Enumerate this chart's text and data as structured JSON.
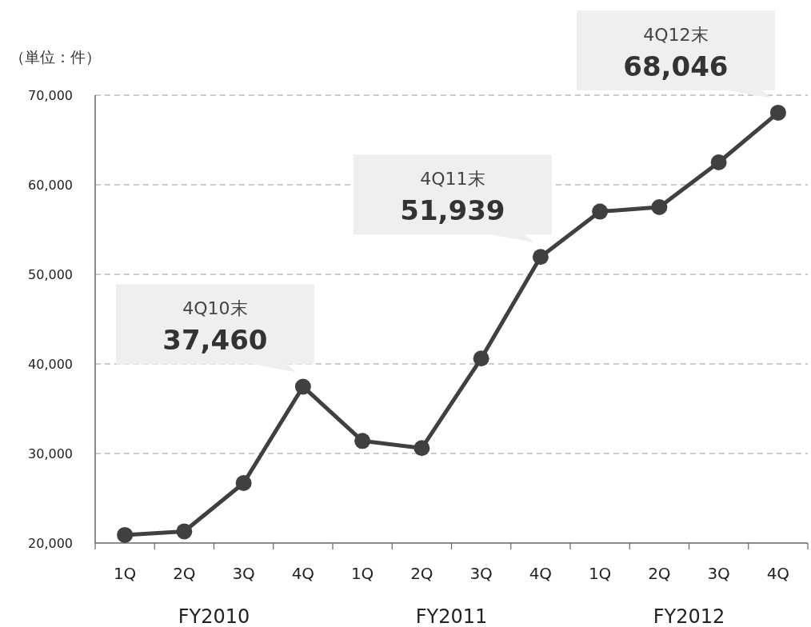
{
  "chart_data": {
    "type": "line",
    "ylabel": "（単位：件）",
    "categories": [
      "1Q",
      "2Q",
      "3Q",
      "4Q",
      "1Q",
      "2Q",
      "3Q",
      "4Q",
      "1Q",
      "2Q",
      "3Q",
      "4Q"
    ],
    "series": [
      {
        "color": "#404040",
        "values": [
          20900,
          21300,
          26700,
          37460,
          31400,
          30600,
          40600,
          51939,
          57000,
          57500,
          62500,
          68046
        ],
        "value_labels": [
          null,
          null,
          null,
          "37,460",
          null,
          null,
          null,
          "51,939",
          null,
          null,
          null,
          "68,046"
        ]
      }
    ],
    "ylim": [
      20000,
      70000
    ],
    "yticks": [
      {
        "value": 20000,
        "label": "20,000"
      },
      {
        "value": 30000,
        "label": "30,000"
      },
      {
        "value": 40000,
        "label": "40,000"
      },
      {
        "value": 50000,
        "label": "50,000"
      },
      {
        "value": 60000,
        "label": "60,000"
      },
      {
        "value": 70000,
        "label": "70,000"
      }
    ],
    "grid": "y",
    "marker": "circle",
    "line_style": "solid",
    "annotations": [
      "4Q10末",
      "4Q11末",
      "4Q12末",
      "FY2010",
      "FY2011",
      "FY2012"
    ]
  }
}
